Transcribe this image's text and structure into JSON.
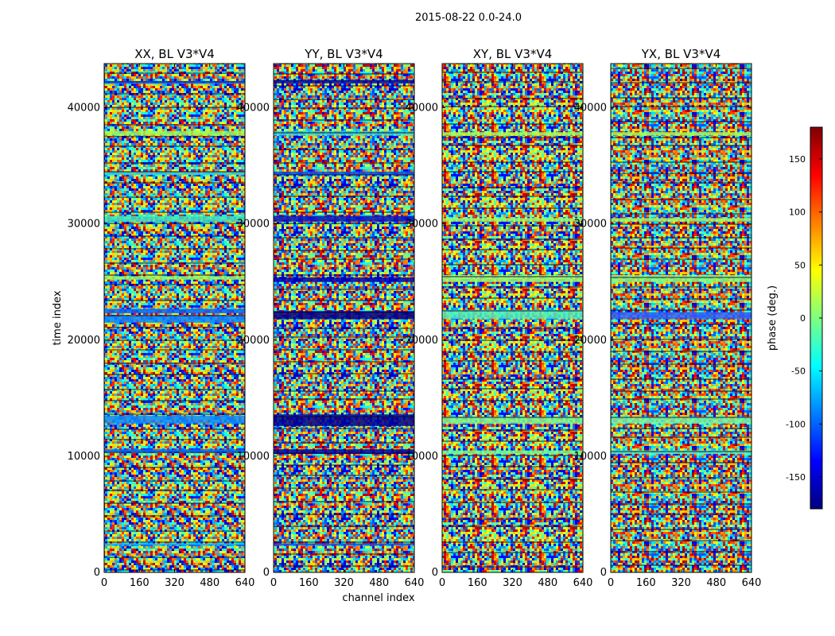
{
  "figure": {
    "suptitle": "2015-08-22 0.0-24.0"
  },
  "chart_data": {
    "type": "heatmap",
    "suptitle": "2015-08-22 0.0-24.0",
    "xlabel": "channel index",
    "ylabel": "time index",
    "xlim": [
      0,
      640
    ],
    "ylim": [
      0,
      43800
    ],
    "xticks": [
      "0",
      "160",
      "320",
      "480",
      "640"
    ],
    "yticks": [
      "0",
      "10000",
      "20000",
      "30000",
      "40000"
    ],
    "xtick_values": [
      0,
      160,
      320,
      480,
      640
    ],
    "ytick_values": [
      0,
      10000,
      20000,
      30000,
      40000
    ],
    "colorbar": {
      "label": "phase (deg.)",
      "range": [
        -180,
        180
      ],
      "colormap": "jet",
      "ticks": [
        "-150",
        "-100",
        "-50",
        "0",
        "50",
        "100",
        "150"
      ],
      "tick_values": [
        -150,
        -100,
        -50,
        0,
        50,
        100,
        150
      ],
      "colors": [
        "#00007f",
        "#0000ff",
        "#007fff",
        "#00ffff",
        "#7fff7f",
        "#ffff00",
        "#ff7f00",
        "#ff0000",
        "#7f0000"
      ]
    },
    "panels": [
      {
        "title": "XX, BL V3*V4",
        "description": "phase vs channel and time; mostly noise with horizontal bands",
        "bands": [
          {
            "t0": 42050,
            "t1": 42300,
            "color": "#1e64ff"
          },
          {
            "t0": 37600,
            "t1": 38000,
            "color": "#9aff5a"
          },
          {
            "t0": 34200,
            "t1": 34500,
            "color": "#33d6d0"
          },
          {
            "t0": 30200,
            "t1": 30700,
            "color": "#33e8c8"
          },
          {
            "t0": 25200,
            "t1": 25500,
            "color": "#8cff70"
          },
          {
            "t0": 22300,
            "t1": 22700,
            "color": "#0a60ff"
          },
          {
            "t0": 21500,
            "t1": 22100,
            "color": "#0a84ff"
          },
          {
            "t0": 12800,
            "t1": 13500,
            "color": "#0a8cff"
          },
          {
            "t0": 10300,
            "t1": 10600,
            "color": "#0064ff"
          },
          {
            "t0": 2300,
            "t1": 2500,
            "color": "#00b4ff"
          }
        ]
      },
      {
        "title": "YY, BL V3*V4",
        "description": "phase vs channel and time; strong dark-blue and dark-red bands",
        "bands": [
          {
            "t0": 42100,
            "t1": 42400,
            "color": "#00009a"
          },
          {
            "t0": 37600,
            "t1": 38000,
            "color": "#33e0d8"
          },
          {
            "t0": 34200,
            "t1": 34500,
            "color": "#0050f0"
          },
          {
            "t0": 30200,
            "t1": 30700,
            "color": "#0014c8"
          },
          {
            "t0": 25000,
            "t1": 25400,
            "color": "#0000b4"
          },
          {
            "t0": 21800,
            "t1": 22500,
            "color": "#00008c"
          },
          {
            "t0": 12600,
            "t1": 13600,
            "color": "#000090"
          },
          {
            "t0": 10200,
            "t1": 10600,
            "color": "#0000a0"
          },
          {
            "t0": 2300,
            "t1": 2500,
            "color": "#0050ff"
          }
        ]
      },
      {
        "title": "XY, BL V3*V4",
        "description": "phase vs channel and time; mostly noise",
        "bands": [
          {
            "t0": 37600,
            "t1": 37900,
            "color": "#a8ff50"
          },
          {
            "t0": 30200,
            "t1": 30500,
            "color": "#a0ff60"
          },
          {
            "t0": 25000,
            "t1": 25600,
            "color": "#98ff70"
          },
          {
            "t0": 21800,
            "t1": 22600,
            "color": "#52f0b8"
          },
          {
            "t0": 12800,
            "t1": 13400,
            "color": "#7cf890"
          },
          {
            "t0": 10200,
            "t1": 10500,
            "color": "#70ff90"
          }
        ]
      },
      {
        "title": "YX, BL V3*V4",
        "description": "phase vs channel and time; mostly noise",
        "bands": [
          {
            "t0": 37600,
            "t1": 37900,
            "color": "#a8ff50"
          },
          {
            "t0": 30200,
            "t1": 30500,
            "color": "#a0ff60"
          },
          {
            "t0": 25000,
            "t1": 25600,
            "color": "#90ff78"
          },
          {
            "t0": 21800,
            "t1": 22400,
            "color": "#2a64ff"
          },
          {
            "t0": 12800,
            "t1": 13400,
            "color": "#78f8a0"
          },
          {
            "t0": 10200,
            "t1": 10500,
            "color": "#58f0c0"
          }
        ]
      }
    ]
  }
}
